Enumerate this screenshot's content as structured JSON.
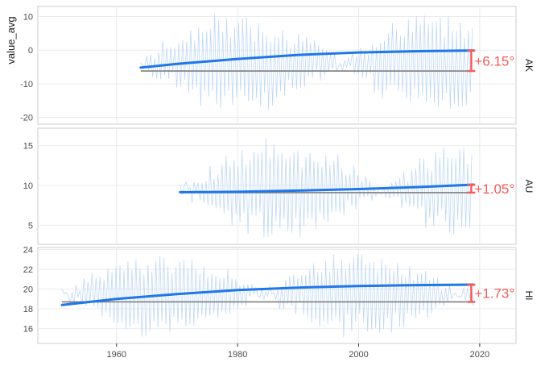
{
  "chart_data": {
    "type": "line",
    "ylabel": "value_avg",
    "xlabel": "",
    "x_ticks": [
      1960,
      1980,
      2000,
      2020
    ],
    "xlim": [
      1947,
      2026
    ],
    "colors": {
      "raw": "#bfd8f7",
      "trend": "#1f77e8",
      "baseline": "#7f7f7f",
      "annotation": "#f45b5b",
      "panel_border": "#cccccc",
      "grid": "#ebebeb"
    },
    "panels": [
      {
        "strip": "AK",
        "ylim": [
          -22,
          13
        ],
        "y_ticks": [
          10,
          0,
          -10,
          -20
        ],
        "raw_range": [
          1964,
          2019
        ],
        "raw_min": -19,
        "raw_max": 11,
        "raw_mean": -4,
        "trend": {
          "x": [
            1964,
            1970,
            1980,
            1990,
            2000,
            2010,
            2019
          ],
          "y": [
            -5.2,
            -4.1,
            -2.6,
            -1.4,
            -0.7,
            -0.3,
            -0.1
          ]
        },
        "baseline": {
          "x": [
            1964,
            2019
          ],
          "y": -6.2
        },
        "annotation": {
          "label": "+6.15°",
          "x": 2019,
          "from": -6.2,
          "to": -0.1
        }
      },
      {
        "strip": "AU",
        "ylim": [
          2.6,
          17.2
        ],
        "y_ticks": [
          15,
          10,
          5
        ],
        "raw_range": [
          1970.5,
          2019
        ],
        "raw_min": 3.5,
        "raw_max": 16,
        "raw_mean": 9.5,
        "trend": {
          "x": [
            1970.5,
            1980,
            1990,
            2000,
            2010,
            2019
          ],
          "y": [
            9.15,
            9.2,
            9.35,
            9.55,
            9.8,
            10.1
          ]
        },
        "baseline": {
          "x": [
            1970.5,
            2019
          ],
          "y": 9.1
        },
        "annotation": {
          "label": "+1.05°",
          "x": 2019,
          "from": 9.1,
          "to": 10.1
        }
      },
      {
        "strip": "HI",
        "ylim": [
          14.5,
          24.2
        ],
        "y_ticks": [
          24,
          22,
          20,
          18,
          16
        ],
        "raw_range": [
          1951,
          2019
        ],
        "raw_min": 15,
        "raw_max": 23.5,
        "raw_mean": 19.5,
        "trend": {
          "x": [
            1951,
            1960,
            1970,
            1980,
            1990,
            2000,
            2010,
            2019
          ],
          "y": [
            18.4,
            19.0,
            19.5,
            19.9,
            20.15,
            20.3,
            20.4,
            20.45
          ]
        },
        "baseline": {
          "x": [
            1951,
            2019
          ],
          "y": 18.7
        },
        "annotation": {
          "label": "+1.73°",
          "x": 2019,
          "from": 18.7,
          "to": 20.45
        }
      }
    ]
  }
}
